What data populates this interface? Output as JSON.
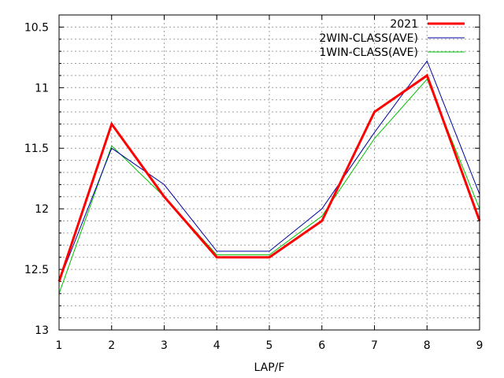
{
  "chart_data": {
    "type": "line",
    "title": "",
    "xlabel": "LAP/F",
    "ylabel": "",
    "xlim": [
      1,
      9
    ],
    "ylim": [
      10.4,
      13
    ],
    "y_reversed": true,
    "grid": true,
    "legend_position": "top-right",
    "x": [
      1,
      2,
      3,
      4,
      5,
      6,
      7,
      8,
      9
    ],
    "x_ticks": [
      1,
      2,
      3,
      4,
      5,
      6,
      7,
      8,
      9
    ],
    "x_tick_labels": [
      "1",
      "2",
      "3",
      "4",
      "5",
      "6",
      "7",
      "8",
      "9"
    ],
    "y_ticks": [
      10.5,
      11,
      11.5,
      12,
      12.5,
      13
    ],
    "y_tick_labels": [
      "10.5",
      "11",
      "11.5",
      "12",
      "12.5",
      "13"
    ],
    "series": [
      {
        "name": "2021",
        "color": "#ff0000",
        "values": [
          12.6,
          11.3,
          11.9,
          12.4,
          12.4,
          12.1,
          11.2,
          10.9,
          12.1
        ]
      },
      {
        "name": "2WIN-CLASS(AVE)",
        "color": "#0000a0",
        "values": [
          12.6,
          11.5,
          11.8,
          12.35,
          12.35,
          12.0,
          11.37,
          10.78,
          11.88
        ]
      },
      {
        "name": "1WIN-CLASS(AVE)",
        "color": "#00c000",
        "values": [
          12.7,
          11.48,
          11.9,
          12.38,
          12.38,
          12.06,
          11.42,
          10.93,
          12.0
        ]
      }
    ]
  }
}
